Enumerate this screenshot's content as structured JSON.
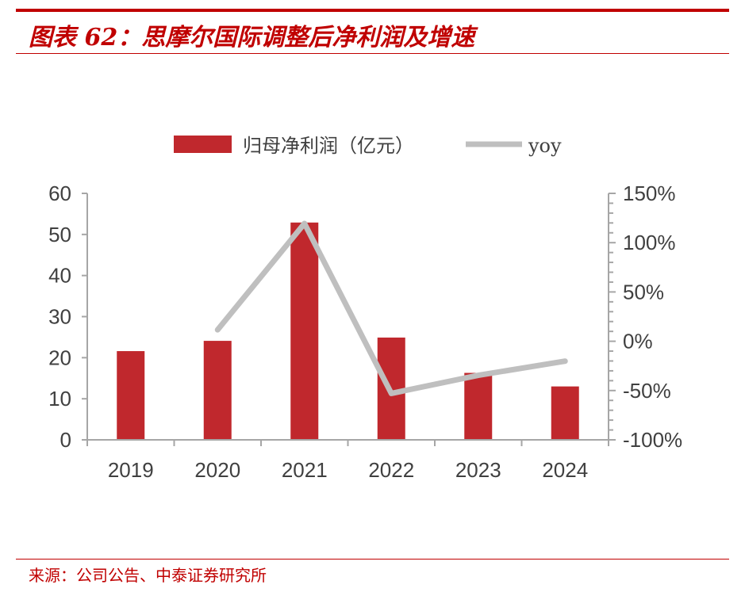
{
  "header": {
    "title": "图表 62：思摩尔国际调整后净利润及增速",
    "source": "来源：公司公告、中泰证券研究所"
  },
  "colors": {
    "accent": "#c00000",
    "bar": "#c0282d",
    "line": "#bfbfbf",
    "axis": "#a6a6a6",
    "text": "#404040"
  },
  "chart_data": {
    "type": "bar",
    "categories": [
      "2019",
      "2020",
      "2021",
      "2022",
      "2023",
      "2024"
    ],
    "series": [
      {
        "name": "归母净利润（亿元）",
        "type": "bar",
        "axis": "left",
        "values": [
          21.6,
          24.1,
          52.9,
          24.9,
          16.3,
          13.0
        ]
      },
      {
        "name": "yoy",
        "type": "line",
        "axis": "right",
        "values": [
          null,
          11.6,
          119.5,
          -52.9,
          -34.5,
          -20.2
        ]
      }
    ],
    "y_left": {
      "ylim": [
        0,
        60
      ],
      "ticks": [
        0,
        10,
        20,
        30,
        40,
        50,
        60
      ]
    },
    "y_right": {
      "ylim": [
        -100,
        150
      ],
      "ticks": [
        -100,
        -50,
        0,
        50,
        100,
        150
      ],
      "unit": "%"
    },
    "legend_position": "top",
    "grid": false
  }
}
